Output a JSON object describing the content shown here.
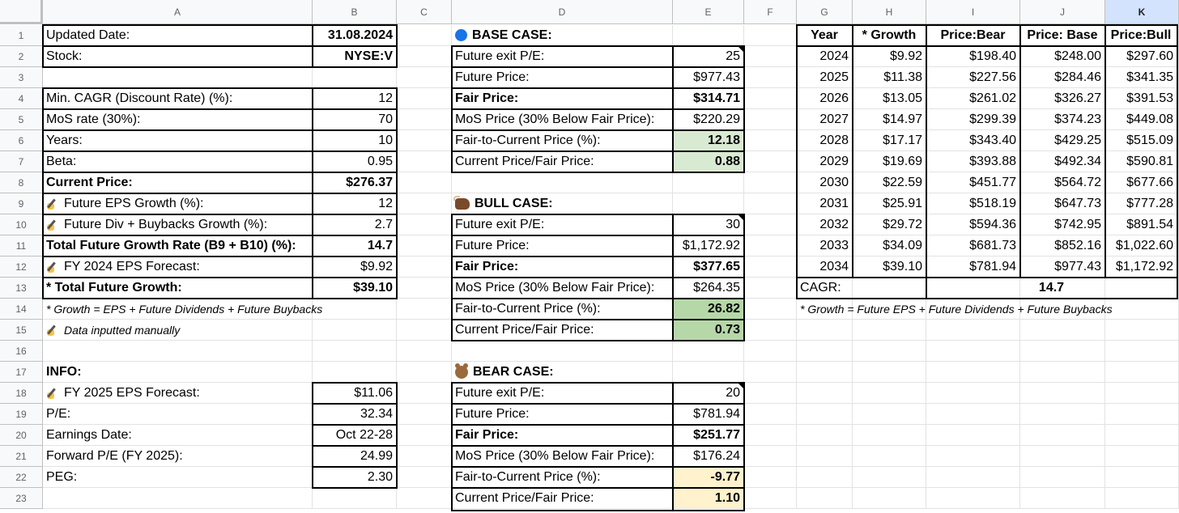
{
  "columns": [
    "A",
    "B",
    "C",
    "D",
    "E",
    "F",
    "G",
    "H",
    "I",
    "J",
    "K"
  ],
  "selected_column": "K",
  "rows": [
    "1",
    "2",
    "3",
    "4",
    "5",
    "6",
    "7",
    "8",
    "9",
    "10",
    "11",
    "12",
    "13",
    "14",
    "15",
    "16",
    "17",
    "18",
    "19",
    "20",
    "21",
    "22",
    "23"
  ],
  "left": {
    "updated_label": "Updated Date:",
    "updated_value": "31.08.2024",
    "stock_label": "Stock:",
    "stock_value": "NYSE:V",
    "cagr_label": "Min. CAGR (Discount Rate) (%):",
    "cagr_value": "12",
    "mos_label": "MoS rate (30%):",
    "mos_value": "70",
    "years_label": "Years:",
    "years_value": "10",
    "beta_label": "Beta:",
    "beta_value": "0.95",
    "price_label": "Current Price:",
    "price_value": "$276.37",
    "eps_growth_label": "Future EPS Growth (%):",
    "eps_growth_value": "12",
    "div_label": "Future Div + Buybacks Growth (%):",
    "div_value": "2.7",
    "total_rate_label": "Total Future Growth Rate (B9 + B10) (%):",
    "total_rate_value": "14.7",
    "eps_forecast_label": "FY 2024 EPS Forecast:",
    "eps_forecast_value": "$9.92",
    "total_growth_label": "* Total Future Growth:",
    "total_growth_value": "$39.10",
    "note_growth": "* Growth = EPS + Future Dividends + Future Buybacks",
    "note_manual": "Data inputted manually"
  },
  "info": {
    "title": "INFO:",
    "eps2025_label": "FY 2025 EPS Forecast:",
    "eps2025_value": "$11.06",
    "pe_label": "P/E:",
    "pe_value": "32.34",
    "earnings_label": "Earnings Date:",
    "earnings_value": "Oct 22-28",
    "fpe_label": "Forward P/E (FY 2025):",
    "fpe_value": "24.99",
    "peg_label": "PEG:",
    "peg_value": "2.30"
  },
  "cases": {
    "base": {
      "title": "BASE CASE:",
      "exit_pe": "25",
      "future_price": "$977.43",
      "fair_price": "$314.71",
      "mos_price": "$220.29",
      "fair_to_current": "12.18",
      "current_fair": "0.88"
    },
    "bull": {
      "title": "BULL CASE:",
      "exit_pe": "30",
      "future_price": "$1,172.92",
      "fair_price": "$377.65",
      "mos_price": "$264.35",
      "fair_to_current": "26.82",
      "current_fair": "0.73"
    },
    "bear": {
      "title": "BEAR CASE:",
      "exit_pe": "20",
      "future_price": "$781.94",
      "fair_price": "$251.77",
      "mos_price": "$176.24",
      "fair_to_current": "-9.77",
      "current_fair": "1.10"
    }
  },
  "case_labels": {
    "exit_pe": "Future exit P/E:",
    "future_price": "Future Price:",
    "fair_price": "Fair Price:",
    "mos_price": "MoS Price (30% Below Fair Price):",
    "fair_to_current": "Fair-to-Current Price (%):",
    "current_fair": "Current Price/Fair Price:"
  },
  "table": {
    "headers": [
      "Year",
      "* Growth",
      "Price:Bear",
      "Price: Base",
      "Price:Bull"
    ],
    "rows": [
      [
        "2024",
        "$9.92",
        "$198.40",
        "$248.00",
        "$297.60"
      ],
      [
        "2025",
        "$11.38",
        "$227.56",
        "$284.46",
        "$341.35"
      ],
      [
        "2026",
        "$13.05",
        "$261.02",
        "$326.27",
        "$391.53"
      ],
      [
        "2027",
        "$14.97",
        "$299.39",
        "$374.23",
        "$449.08"
      ],
      [
        "2028",
        "$17.17",
        "$343.40",
        "$429.25",
        "$515.09"
      ],
      [
        "2029",
        "$19.69",
        "$393.88",
        "$492.34",
        "$590.81"
      ],
      [
        "2030",
        "$22.59",
        "$451.77",
        "$564.72",
        "$677.66"
      ],
      [
        "2031",
        "$25.91",
        "$518.19",
        "$647.73",
        "$777.28"
      ],
      [
        "2032",
        "$29.72",
        "$594.36",
        "$742.95",
        "$891.54"
      ],
      [
        "2033",
        "$34.09",
        "$681.73",
        "$852.16",
        "$1,022.60"
      ],
      [
        "2034",
        "$39.10",
        "$781.94",
        "$977.43",
        "$1,172.92"
      ]
    ],
    "cagr_label": "CAGR:",
    "cagr_value": "14.7",
    "note": "* Growth = Future EPS + Future Dividends + Future Buybacks"
  },
  "colors": {
    "light_green": "#d9ead3",
    "mid_green": "#b6d7a8",
    "light_yellow": "#fff2cc",
    "selected_header": "#d3e3fd",
    "base_dot": "#1a73e8"
  },
  "icons": {
    "base": "blue-circle-icon",
    "bull": "ox-icon",
    "bear": "bear-face-icon",
    "manual": "writing-hand-icon"
  }
}
